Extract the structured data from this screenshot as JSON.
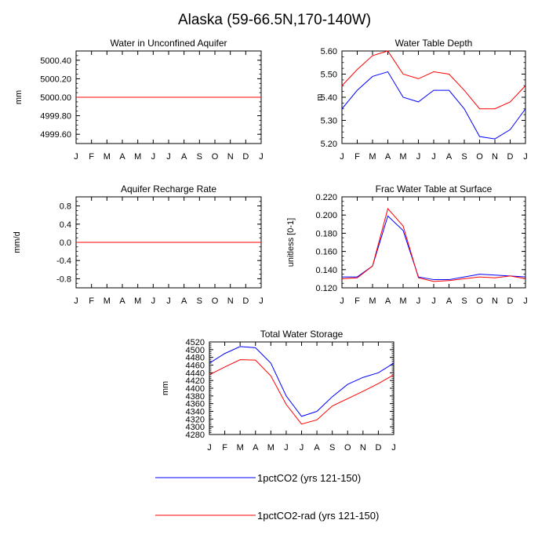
{
  "title": "Alaska (59-66.5N,170-140W)",
  "months": [
    "J",
    "F",
    "M",
    "A",
    "M",
    "J",
    "J",
    "A",
    "S",
    "O",
    "N",
    "D",
    "J"
  ],
  "colors": {
    "series_1": "#0000ff",
    "series_2": "#ff0000"
  },
  "legend": [
    {
      "label": "1pctCO2 (yrs 121-150)",
      "color": "#0000ff"
    },
    {
      "label": "1pctCO2-rad (yrs 121-150)",
      "color": "#ff0000"
    }
  ],
  "chart_data": [
    {
      "type": "line",
      "title": "Water in Unconfined Aquifer",
      "ylabel": "mm",
      "ylim": [
        4999.5,
        5000.5
      ],
      "yticks": [
        4999.6,
        4999.8,
        5000.0,
        5000.2,
        5000.4
      ],
      "ytick_labels": [
        "4999.60",
        "4999.80",
        "5000.00",
        "5000.20",
        "5000.40"
      ],
      "series": [
        {
          "name": "1pctCO2 (yrs 121-150)",
          "values": [
            5000,
            5000,
            5000,
            5000,
            5000,
            5000,
            5000,
            5000,
            5000,
            5000,
            5000,
            5000,
            5000
          ]
        },
        {
          "name": "1pctCO2-rad (yrs 121-150)",
          "values": [
            5000,
            5000,
            5000,
            5000,
            5000,
            5000,
            5000,
            5000,
            5000,
            5000,
            5000,
            5000,
            5000
          ]
        }
      ]
    },
    {
      "type": "line",
      "title": "Water Table Depth",
      "ylabel": "m",
      "ylim": [
        5.2,
        5.6
      ],
      "yticks": [
        5.2,
        5.3,
        5.4,
        5.5,
        5.6
      ],
      "ytick_labels": [
        "5.20",
        "5.30",
        "5.40",
        "5.50",
        "5.60"
      ],
      "series": [
        {
          "name": "1pctCO2 (yrs 121-150)",
          "values": [
            5.35,
            5.43,
            5.49,
            5.51,
            5.4,
            5.38,
            5.43,
            5.43,
            5.35,
            5.23,
            5.22,
            5.26,
            5.35
          ]
        },
        {
          "name": "1pctCO2-rad (yrs 121-150)",
          "values": [
            5.45,
            5.52,
            5.58,
            5.6,
            5.5,
            5.48,
            5.51,
            5.5,
            5.43,
            5.35,
            5.35,
            5.38,
            5.45
          ]
        }
      ]
    },
    {
      "type": "line",
      "title": "Aquifer Recharge Rate",
      "ylabel": "mm/d",
      "ylim": [
        -1.0,
        1.0
      ],
      "yticks": [
        -0.8,
        -0.4,
        0.0,
        0.4,
        0.8
      ],
      "ytick_labels": [
        "-0.8",
        "-0.4",
        "0.0",
        "0.4",
        "0.8"
      ],
      "series": [
        {
          "name": "1pctCO2 (yrs 121-150)",
          "values": [
            0,
            0,
            0,
            0,
            0,
            0,
            0,
            0,
            0,
            0,
            0,
            0,
            0
          ]
        },
        {
          "name": "1pctCO2-rad (yrs 121-150)",
          "values": [
            0,
            0,
            0,
            0,
            0,
            0,
            0,
            0,
            0,
            0,
            0,
            0,
            0
          ]
        }
      ]
    },
    {
      "type": "line",
      "title": "Frac Water Table at Surface",
      "ylabel": "unitless [0-1]",
      "ylim": [
        0.12,
        0.22
      ],
      "yticks": [
        0.12,
        0.14,
        0.16,
        0.18,
        0.2,
        0.22
      ],
      "ytick_labels": [
        "0.120",
        "0.140",
        "0.160",
        "0.180",
        "0.200",
        "0.220"
      ],
      "series": [
        {
          "name": "1pctCO2 (yrs 121-150)",
          "values": [
            0.132,
            0.132,
            0.144,
            0.199,
            0.183,
            0.132,
            0.129,
            0.129,
            0.132,
            0.135,
            0.134,
            0.133,
            0.132
          ]
        },
        {
          "name": "1pctCO2-rad (yrs 121-150)",
          "values": [
            0.13,
            0.131,
            0.144,
            0.207,
            0.188,
            0.131,
            0.127,
            0.128,
            0.13,
            0.132,
            0.131,
            0.133,
            0.13
          ]
        }
      ]
    },
    {
      "type": "line",
      "title": "Total Water Storage",
      "ylabel": "mm",
      "ylim": [
        4280,
        4520
      ],
      "yticks": [
        4280,
        4300,
        4320,
        4340,
        4360,
        4380,
        4400,
        4420,
        4440,
        4460,
        4480,
        4500,
        4520
      ],
      "ytick_labels": [
        "4280",
        "4300",
        "4320",
        "4340",
        "4360",
        "4380",
        "4400",
        "4420",
        "4440",
        "4460",
        "4480",
        "4500",
        "4520"
      ],
      "series": [
        {
          "name": "1pctCO2 (yrs 121-150)",
          "values": [
            4465,
            4490,
            4508,
            4505,
            4465,
            4380,
            4327,
            4340,
            4378,
            4410,
            4428,
            4440,
            4465
          ]
        },
        {
          "name": "1pctCO2-rad (yrs 121-150)",
          "values": [
            4435,
            4455,
            4474,
            4473,
            4432,
            4358,
            4307,
            4318,
            4354,
            4373,
            4392,
            4412,
            4435
          ]
        }
      ]
    }
  ]
}
